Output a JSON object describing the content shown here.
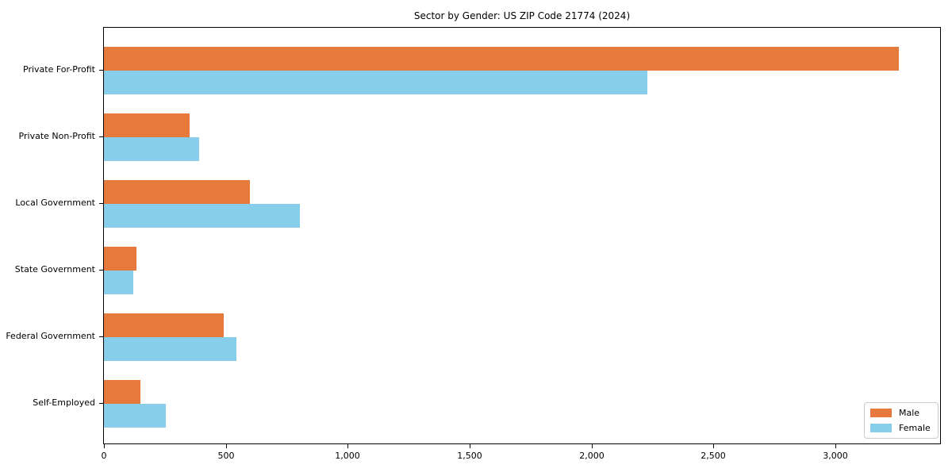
{
  "chart_data": {
    "type": "bar",
    "orientation": "horizontal",
    "title": "Sector by Gender: US ZIP Code 21774 (2024)",
    "categories": [
      "Private For-Profit",
      "Private Non-Profit",
      "Local Government",
      "State Government",
      "Federal Government",
      "Self-Employed"
    ],
    "series": [
      {
        "name": "Male",
        "color": "#E8793D",
        "values": [
          3260,
          350,
          600,
          135,
          490,
          150
        ]
      },
      {
        "name": "Female",
        "color": "#87CEEB",
        "values": [
          2230,
          390,
          805,
          120,
          545,
          255
        ]
      }
    ],
    "xlabel": "",
    "ylabel": "",
    "xlim": [
      0,
      3430
    ],
    "xticks": [
      0,
      500,
      1000,
      1500,
      2000,
      2500,
      3000
    ],
    "xtick_labels": [
      "0",
      "500",
      "1,000",
      "1,500",
      "2,000",
      "2,500",
      "3,000"
    ],
    "grid": false,
    "legend": {
      "position": "lower-right",
      "entries": [
        "Male",
        "Female"
      ]
    }
  }
}
